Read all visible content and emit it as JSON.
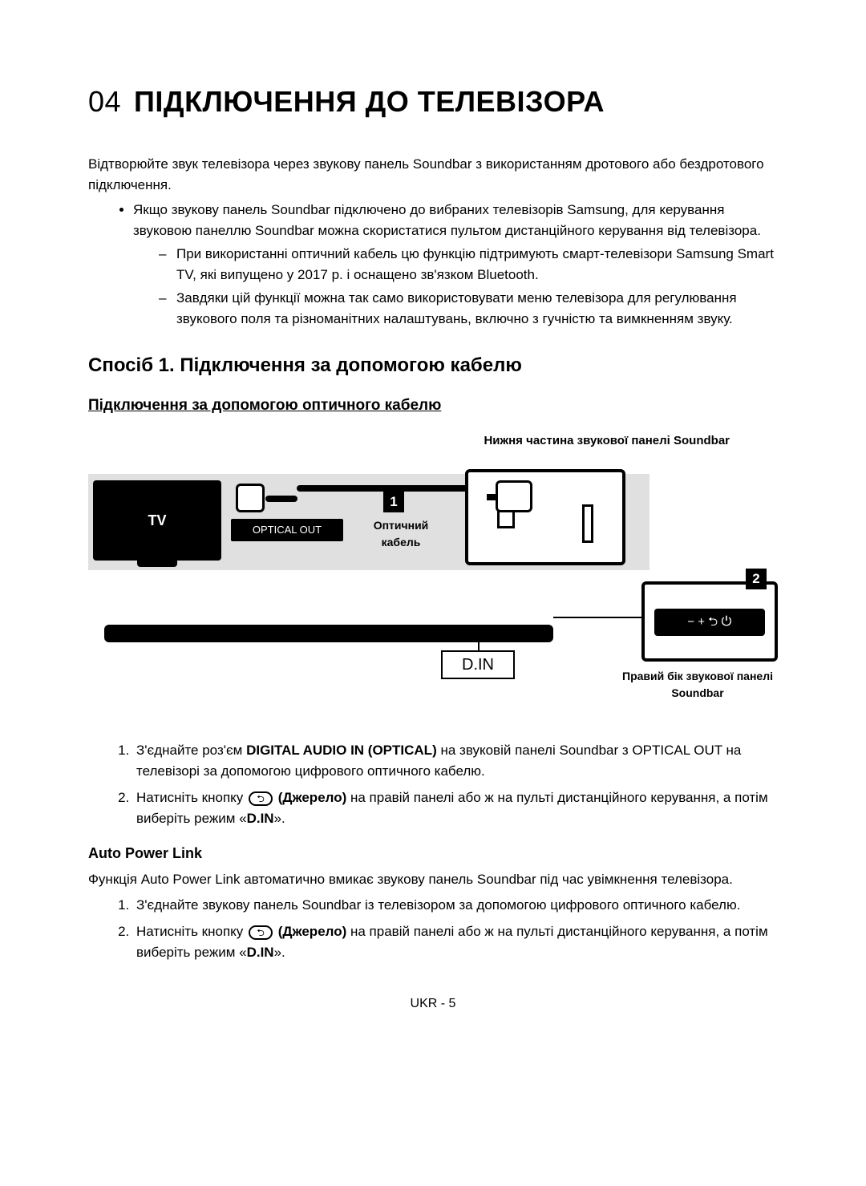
{
  "chapter": {
    "num": "04",
    "title": "ПІДКЛЮЧЕННЯ ДО ТЕЛЕВІЗОРА"
  },
  "intro": "Відтворюйте звук телевізора через звукову панель Soundbar з використанням дротового або бездротового підключення.",
  "bullet1": "Якщо звукову панель Soundbar підключено до вибраних телевізорів Samsung, для керування звуковою панеллю Soundbar можна скористатися пультом дистанційного керування від телевізора.",
  "dash1": "При використанні оптичний кабель цю функцію підтримують смарт-телевізори Samsung Smart TV, які випущено у 2017 р. і оснащено зв'язком Bluetooth.",
  "dash2": "Завдяки цій функції можна так само використовувати меню телевізора для регулювання звукового поля та різноманітних налаштувань, включно з гучністю та вимкненням звуку.",
  "method1_title": "Спосіб 1. Підключення за допомогою кабелю",
  "sub1_title": "Підключення за допомогою оптичного кабелю",
  "diagram": {
    "top_caption": "Нижня частина звукової панелі Soundbar",
    "tv_label": "TV",
    "optical_out": "OPTICAL OUT",
    "cable_label": "Оптичний кабель",
    "num1": "1",
    "num2": "2",
    "din": "D.IN",
    "controls": "−  +  ⮌  ⏻",
    "bottom_caption": "Правий бік звукової панелі Soundbar"
  },
  "step1_pre": "З'єднайте роз'єм ",
  "step1_bold": "DIGITAL AUDIO IN (OPTICAL)",
  "step1_post": " на звуковій панелі Soundbar з OPTICAL OUT на телевізорі за допомогою цифрового оптичного кабелю.",
  "step2_pre": "Натисніть кнопку ",
  "step2_bold": "(Джерело)",
  "step2_post": " на правій панелі або ж на пульті дистанційного керування, а потім виберіть режим «",
  "step2_mode": "D.IN",
  "step2_close": "».",
  "apl_title": "Auto Power Link",
  "apl_intro": "Функція Auto Power Link автоматично вмикає звукову панель Soundbar під час увімкнення телевізора.",
  "apl_step1": "З'єднайте звукову панель Soundbar із телевізором за допомогою цифрового оптичного кабелю.",
  "apl_step2_pre": "Натисніть кнопку ",
  "apl_step2_bold": "(Джерело)",
  "apl_step2_post": " на правій панелі або ж на пульті дистанційного керування, а потім виберіть режим «",
  "apl_step2_mode": "D.IN",
  "apl_step2_close": "».",
  "footer": "UKR - 5"
}
